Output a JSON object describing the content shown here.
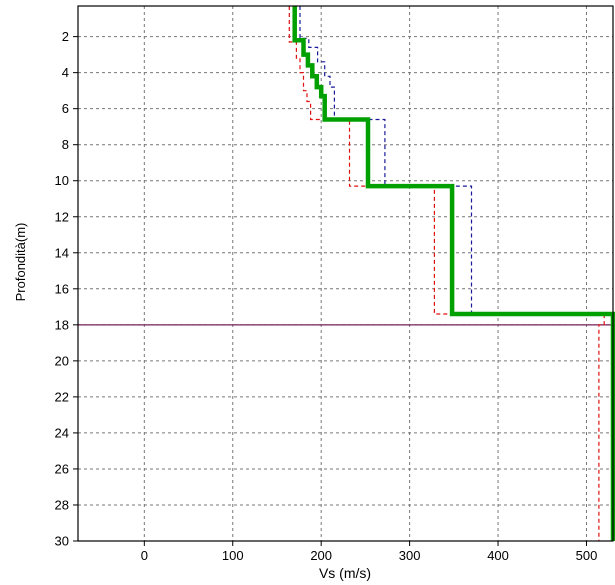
{
  "chart_data": {
    "type": "line",
    "title": "",
    "xlabel": "Vs (m/s)",
    "ylabel": "Profondità(m)",
    "xlim": [
      -75,
      530
    ],
    "ylim": [
      0.3,
      30
    ],
    "y_inverted": true,
    "grid": true,
    "legend": "none",
    "x_ticks": [
      "0",
      "100",
      "200",
      "300",
      "400",
      "500"
    ],
    "y_ticks": [
      "2",
      "4",
      "6",
      "8",
      "10",
      "12",
      "14",
      "16",
      "18",
      "20",
      "22",
      "24",
      "26",
      "28",
      "30"
    ],
    "reference_line": {
      "depth": 18.0,
      "color": "#7a1f5c"
    },
    "series": [
      {
        "color": "#00a000",
        "style": "solid-thick",
        "points": [
          [
            170,
            0.3
          ],
          [
            170,
            2.2
          ],
          [
            180,
            2.2
          ],
          [
            180,
            3.0
          ],
          [
            185,
            3.0
          ],
          [
            185,
            3.6
          ],
          [
            190,
            3.6
          ],
          [
            190,
            4.2
          ],
          [
            195,
            4.2
          ],
          [
            195,
            4.8
          ],
          [
            200,
            4.8
          ],
          [
            200,
            5.3
          ],
          [
            204,
            5.3
          ],
          [
            204,
            6.6
          ],
          [
            253,
            6.6
          ],
          [
            253,
            10.3
          ],
          [
            348,
            10.3
          ],
          [
            348,
            17.4
          ],
          [
            530,
            17.4
          ],
          [
            530,
            30
          ]
        ]
      },
      {
        "color": "#1a1a9a",
        "style": "dashed",
        "points": [
          [
            176,
            0.3
          ],
          [
            176,
            2.1
          ],
          [
            186,
            2.1
          ],
          [
            186,
            2.6
          ],
          [
            196,
            2.6
          ],
          [
            196,
            3.4
          ],
          [
            204,
            3.4
          ],
          [
            204,
            4.2
          ],
          [
            210,
            4.2
          ],
          [
            210,
            4.8
          ],
          [
            215,
            4.8
          ],
          [
            215,
            6.6
          ],
          [
            272,
            6.6
          ],
          [
            272,
            10.3
          ],
          [
            370,
            10.3
          ],
          [
            370,
            17.4
          ],
          [
            540,
            17.4
          ],
          [
            540,
            30
          ]
        ]
      },
      {
        "color": "#e01010",
        "style": "dashed",
        "points": [
          [
            164,
            0.3
          ],
          [
            164,
            2.3
          ],
          [
            172,
            2.3
          ],
          [
            172,
            3.2
          ],
          [
            176,
            3.2
          ],
          [
            176,
            4.0
          ],
          [
            180,
            4.0
          ],
          [
            180,
            5.0
          ],
          [
            184,
            5.0
          ],
          [
            184,
            5.6
          ],
          [
            188,
            5.6
          ],
          [
            188,
            6.6
          ],
          [
            232,
            6.6
          ],
          [
            232,
            10.3
          ],
          [
            328,
            10.3
          ],
          [
            328,
            17.4
          ],
          [
            520,
            17.4
          ],
          [
            520,
            18.0
          ],
          [
            514,
            18.0
          ],
          [
            514,
            30
          ]
        ]
      }
    ]
  }
}
